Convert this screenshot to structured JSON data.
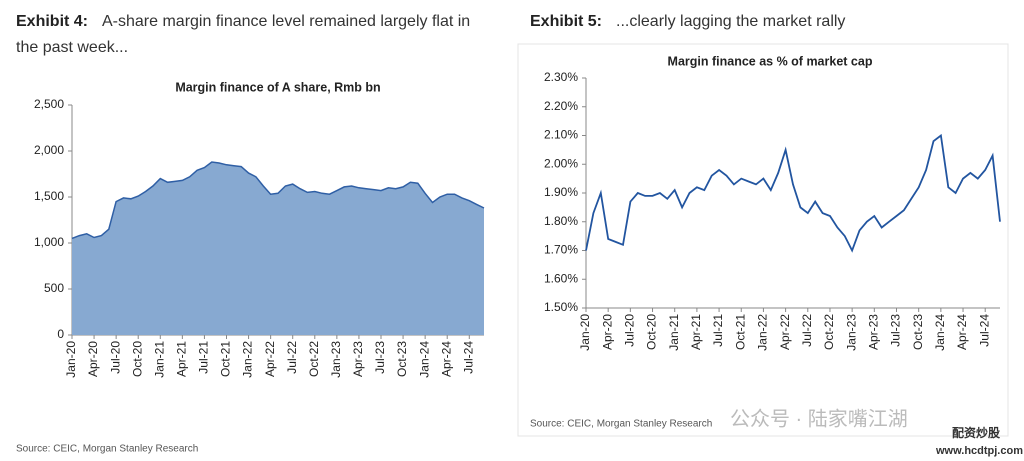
{
  "chart_data": [
    {
      "type": "area",
      "exhibit": "Exhibit 4:",
      "heading": "A-share margin finance level remained largely flat in the past week...",
      "title": "Margin finance of A share, Rmb bn",
      "source": "Source: CEIC, Morgan Stanley Research",
      "color": "#87a9d1",
      "line_color": "#2f5fa5",
      "categories": [
        "Jan-20",
        null,
        null,
        "Apr-20",
        null,
        null,
        "Jul-20",
        null,
        null,
        "Oct-20",
        null,
        null,
        "Jan-21",
        null,
        null,
        "Apr-21",
        null,
        null,
        "Jul-21",
        null,
        null,
        "Oct-21",
        null,
        null,
        "Jan-22",
        null,
        null,
        "Apr-22",
        null,
        null,
        "Jul-22",
        null,
        null,
        "Oct-22",
        null,
        null,
        "Jan-23",
        null,
        null,
        "Apr-23",
        null,
        null,
        "Jul-23",
        null,
        null,
        "Oct-23",
        null,
        null,
        "Jan-24",
        null,
        null,
        "Apr-24",
        null,
        null,
        "Jul-24",
        null,
        null
      ],
      "values": [
        1050,
        1080,
        1100,
        1060,
        1080,
        1150,
        1450,
        1490,
        1480,
        1510,
        1560,
        1620,
        1700,
        1660,
        1670,
        1680,
        1720,
        1790,
        1820,
        1880,
        1870,
        1850,
        1840,
        1830,
        1760,
        1720,
        1620,
        1530,
        1540,
        1620,
        1640,
        1590,
        1550,
        1560,
        1540,
        1530,
        1570,
        1610,
        1620,
        1600,
        1590,
        1580,
        1570,
        1600,
        1590,
        1610,
        1660,
        1650,
        1540,
        1440,
        1500,
        1530,
        1530,
        1490,
        1460,
        1420,
        1380
      ],
      "ylim": [
        0,
        2500
      ],
      "yticks": [
        0,
        500,
        {
          "value": 1000,
          "label": "1,000"
        },
        {
          "value": 1500,
          "label": "1,500"
        },
        {
          "value": 2000,
          "label": "2,000"
        },
        {
          "value": 2500,
          "label": "2,500"
        }
      ]
    },
    {
      "type": "line",
      "exhibit": "Exhibit 5:",
      "heading": "...clearly lagging the market rally",
      "title": "Margin finance as % of market cap",
      "source": "Source: CEIC, Morgan Stanley Research",
      "color": "#2255a0",
      "categories": [
        "Jan-20",
        null,
        null,
        "Apr-20",
        null,
        null,
        "Jul-20",
        null,
        null,
        "Oct-20",
        null,
        null,
        "Jan-21",
        null,
        null,
        "Apr-21",
        null,
        null,
        "Jul-21",
        null,
        null,
        "Oct-21",
        null,
        null,
        "Jan-22",
        null,
        null,
        "Apr-22",
        null,
        null,
        "Jul-22",
        null,
        null,
        "Oct-22",
        null,
        null,
        "Jan-23",
        null,
        null,
        "Apr-23",
        null,
        null,
        "Jul-23",
        null,
        null,
        "Oct-23",
        null,
        null,
        "Jan-24",
        null,
        null,
        "Apr-24",
        null,
        null,
        "Jul-24",
        null,
        null
      ],
      "values": [
        1.7,
        1.83,
        1.9,
        1.74,
        1.73,
        1.72,
        1.87,
        1.9,
        1.89,
        1.89,
        1.9,
        1.88,
        1.91,
        1.85,
        1.9,
        1.92,
        1.91,
        1.96,
        1.98,
        1.96,
        1.93,
        1.95,
        1.94,
        1.93,
        1.95,
        1.91,
        1.97,
        2.05,
        1.93,
        1.85,
        1.83,
        1.87,
        1.83,
        1.82,
        1.78,
        1.75,
        1.7,
        1.77,
        1.8,
        1.82,
        1.78,
        1.8,
        1.82,
        1.84,
        1.88,
        1.92,
        1.98,
        2.08,
        2.1,
        1.92,
        1.9,
        1.95,
        1.97,
        1.95,
        1.98,
        2.03,
        1.8
      ],
      "ylim": [
        1.5,
        2.3
      ],
      "yticks": [
        {
          "value": 1.5,
          "label": "1.50%"
        },
        {
          "value": 1.6,
          "label": "1.60%"
        },
        {
          "value": 1.7,
          "label": "1.70%"
        },
        {
          "value": 1.8,
          "label": "1.80%"
        },
        {
          "value": 1.9,
          "label": "1.90%"
        },
        {
          "value": 2.0,
          "label": "2.00%"
        },
        {
          "value": 2.1,
          "label": "2.10%"
        },
        {
          "value": 2.2,
          "label": "2.20%"
        },
        {
          "value": 2.3,
          "label": "2.30%"
        }
      ]
    }
  ],
  "watermark": {
    "account": "公众号 · 陆家嘴江湖",
    "brand": "配资炒股",
    "site": "www.hcdtpj.com"
  }
}
